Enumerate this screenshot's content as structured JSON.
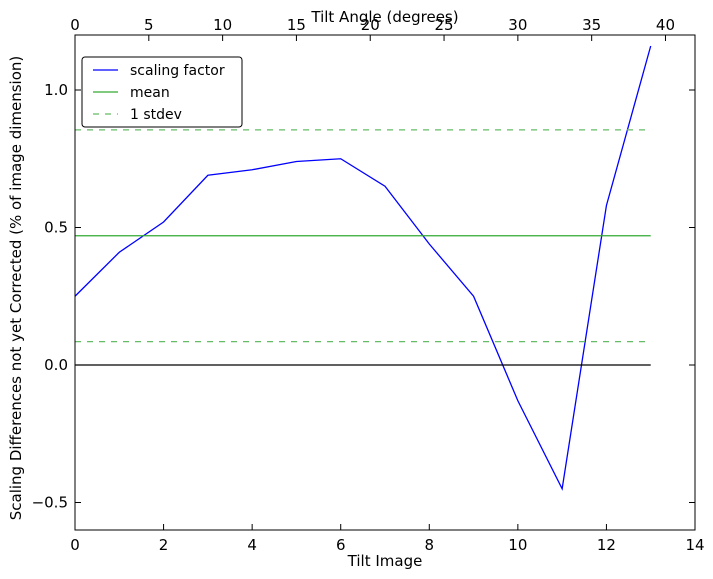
{
  "chart_data": {
    "type": "line",
    "xlabel": "Tilt Image",
    "ylabel": "Scaling Differences not yet Corrected (% of image dimension)",
    "top_xlabel": "Tilt Angle (degrees)",
    "xlim": [
      0,
      14
    ],
    "ylim": [
      -0.6,
      1.2
    ],
    "top_xlim": [
      0,
      42
    ],
    "x_ticks": [
      0,
      2,
      4,
      6,
      8,
      10,
      12,
      14
    ],
    "y_ticks": [
      -0.5,
      0.0,
      0.5,
      1.0
    ],
    "y_tick_labels": [
      "−0.5",
      "0.0",
      "0.5",
      "1.0"
    ],
    "top_ticks": [
      0,
      5,
      10,
      15,
      20,
      25,
      30,
      35,
      40
    ],
    "grid": false,
    "legend_position": "top-left",
    "series": [
      {
        "name": "scaling factor",
        "color": "#0000ff",
        "style": "solid",
        "x": [
          0,
          1,
          2,
          3,
          4,
          5,
          6,
          7,
          8,
          9,
          10,
          11,
          12,
          13
        ],
        "y": [
          0.25,
          0.41,
          0.52,
          0.69,
          0.71,
          0.74,
          0.75,
          0.65,
          0.44,
          0.25,
          -0.13,
          -0.45,
          0.58,
          1.16
        ]
      },
      {
        "name": "mean",
        "color": "#33aa33",
        "style": "solid",
        "x": [
          0,
          13
        ],
        "y": [
          0.47,
          0.47
        ]
      },
      {
        "name": "1 stdev",
        "color": "#66bb66",
        "style": "dashed",
        "x": [
          0,
          13
        ],
        "y": [
          0.855,
          0.855
        ]
      },
      {
        "color": "#66bb66",
        "style": "dashed",
        "x": [
          0,
          13
        ],
        "y": [
          0.085,
          0.085
        ]
      },
      {
        "color": "#000000",
        "style": "solid",
        "x": [
          0,
          13
        ],
        "y": [
          0.0,
          0.0
        ]
      }
    ]
  }
}
